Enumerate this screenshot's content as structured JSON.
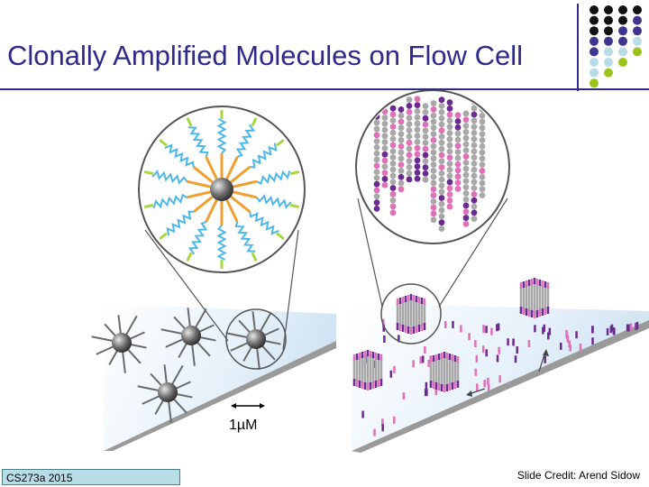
{
  "slide": {
    "title": "Clonally Amplified Molecules on Flow Cell",
    "footer_left": "CS273a 2015",
    "footer_right": "Slide Credit: Arend Sidow",
    "scale_label": "1µM"
  },
  "colors": {
    "title": "#2e2a8c",
    "dot_black": "#111111",
    "dot_purple": "#3d3590",
    "dot_lightblue": "#b6dde8",
    "dot_green": "#9bc31c",
    "strand_cyan": "#4db8e8",
    "strand_orange": "#f0a030",
    "strand_green": "#a8d840",
    "bead_gray": "#666666",
    "pink": "#e070b8",
    "violet": "#6a2a90",
    "gray": "#a8a8a8"
  }
}
